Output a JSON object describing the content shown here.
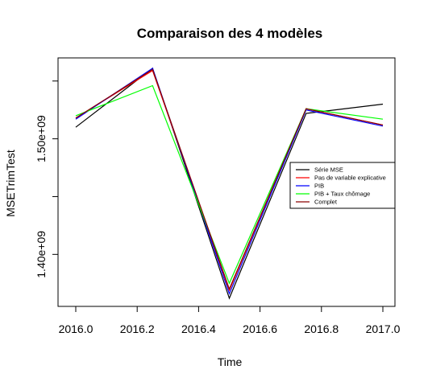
{
  "chart_data": {
    "type": "line",
    "title": "Comparaison des 4 modèles",
    "xlabel": "Time",
    "ylabel": "MSETrimTest",
    "xlim": [
      2016.0,
      2017.0
    ],
    "ylim": [
      1355000000.0,
      1570000000.0
    ],
    "x": [
      2016.0,
      2016.25,
      2016.5,
      2016.75,
      2017.0
    ],
    "x_ticks": [
      2016.0,
      2016.2,
      2016.4,
      2016.6,
      2016.8,
      2017.0
    ],
    "x_tick_labels": [
      "2016.0",
      "2016.2",
      "2016.4",
      "2016.6",
      "2016.8",
      "2017.0"
    ],
    "y_ticks": [
      1400000000.0,
      1450000000.0,
      1500000000.0,
      1550000000.0
    ],
    "y_tick_labels": [
      "1.40e+09",
      "",
      "1.50e+09",
      ""
    ],
    "grid": false,
    "legend_position": "right",
    "series": [
      {
        "name": "Série MSE",
        "color": "#000000",
        "values": [
          1510000000.0,
          1561000000.0,
          1362000000.0,
          1522000000.0,
          1530000000.0
        ]
      },
      {
        "name": "Pas de variable explicative",
        "color": "#ff0000",
        "values": [
          1518000000.0,
          1559000000.0,
          1369000000.0,
          1526000000.0,
          1512000000.0
        ]
      },
      {
        "name": "PIB",
        "color": "#0000ff",
        "values": [
          1517000000.0,
          1561000000.0,
          1366000000.0,
          1525000000.0,
          1511000000.0
        ]
      },
      {
        "name": "PIB + Taux chômage",
        "color": "#00ff00",
        "values": [
          1520000000.0,
          1546000000.0,
          1375000000.0,
          1526000000.0,
          1517000000.0
        ]
      },
      {
        "name": "Complet",
        "color": "#8b0000",
        "values": [
          1518000000.0,
          1560000000.0,
          1370000000.0,
          1526000000.0,
          1512000000.0
        ]
      }
    ]
  }
}
